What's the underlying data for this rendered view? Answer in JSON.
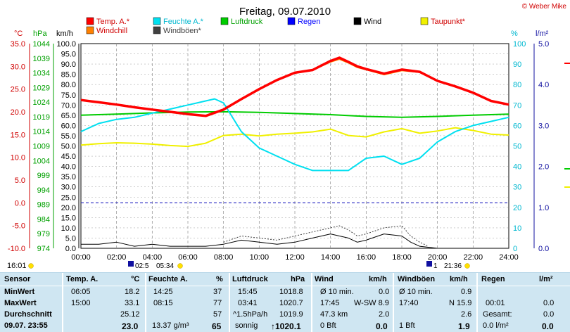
{
  "header": {
    "title": "Freitag, 09.07.2010",
    "copyright": "© Weber Mike"
  },
  "legend": [
    {
      "label": "Temp. A.*",
      "color": "#ff0000",
      "row": 0,
      "col": 0
    },
    {
      "label": "Feuchte A.*",
      "color": "#00e0f0",
      "row": 0,
      "col": 1
    },
    {
      "label": "Luftdruck",
      "color": "#00cc00",
      "row": 0,
      "col": 2
    },
    {
      "label": "Regen",
      "color": "#0000ff",
      "row": 0,
      "col": 3
    },
    {
      "label": "Wind",
      "color": "#000000",
      "row": 0,
      "col": 4
    },
    {
      "label": "Taupunkt*",
      "color": "#f0f000",
      "row": 0,
      "col": 5
    },
    {
      "label": "Windchill",
      "color": "#ff8000",
      "row": 1,
      "col": 0
    },
    {
      "label": "Windböen*",
      "color": "#404040",
      "row": 1,
      "col": 1
    }
  ],
  "axis_units": {
    "temp": "°C",
    "pressure": "hPa",
    "wind": "km/h",
    "humidity": "%",
    "rain": "l/m²"
  },
  "markers": {
    "left_time": "16:01",
    "cursor1": "02:5",
    "cursor2": "05:34",
    "right_marker1": "1",
    "right_marker2": "21:36"
  },
  "chart_data": {
    "type": "line",
    "x_ticks": [
      "00:00",
      "02:00",
      "04:00",
      "06:00",
      "08:00",
      "10:00",
      "12:00",
      "14:00",
      "16:00",
      "18:00",
      "20:00",
      "22:00",
      "24:00"
    ],
    "xlim": [
      "00:00",
      "24:00"
    ],
    "axes": {
      "temp": {
        "ticks": [
          "35.0",
          "30.0",
          "25.0",
          "20.0",
          "15.0",
          "10.0",
          "5.0",
          "0.0",
          "-5.0",
          "-10.0"
        ],
        "ylim": [
          -10,
          35
        ]
      },
      "pressure": {
        "ticks": [
          "1044",
          "1039",
          "1034",
          "1029",
          "1024",
          "1019",
          "1014",
          "1009",
          "1004",
          "999",
          "994",
          "989",
          "984",
          "979",
          "974"
        ],
        "ylim": [
          974,
          1044
        ]
      },
      "wind": {
        "ticks": [
          "100.0",
          "95.0",
          "90.0",
          "85.0",
          "80.0",
          "75.0",
          "70.0",
          "65.0",
          "60.0",
          "55.0",
          "50.0",
          "45.0",
          "40.0",
          "35.0",
          "30.0",
          "25.0",
          "20.0",
          "15.0",
          "10.0",
          "5.0",
          "0.0"
        ],
        "ylim": [
          0,
          100
        ]
      },
      "humidity": {
        "ticks": [
          "100",
          "90",
          "80",
          "70",
          "60",
          "50",
          "40",
          "30",
          "20",
          "10",
          "0"
        ],
        "ylim": [
          0,
          100
        ]
      },
      "rain": {
        "ticks": [
          "5.0",
          "4.0",
          "3.0",
          "2.0",
          "1.0",
          "0.0"
        ],
        "ylim": [
          0,
          5
        ]
      }
    },
    "series": [
      {
        "name": "Temp. A.*",
        "axis": "temp",
        "color": "#ff0000",
        "x": [
          0,
          1,
          2,
          3,
          4,
          5,
          6,
          7,
          8,
          9,
          10,
          11,
          12,
          13,
          14,
          14.5,
          15,
          15.5,
          16,
          17,
          18,
          19,
          20,
          21,
          22,
          23,
          24
        ],
        "y": [
          22.6,
          22.1,
          21.6,
          21.0,
          20.5,
          20.0,
          19.5,
          19.1,
          20.5,
          22.8,
          25.0,
          27.0,
          28.6,
          29.2,
          31.2,
          31.9,
          31.0,
          30.0,
          29.4,
          28.4,
          29.3,
          28.8,
          26.8,
          25.6,
          24.2,
          22.4,
          21.6
        ]
      },
      {
        "name": "Windchill",
        "axis": "temp",
        "color": "#ff8000",
        "x": [
          0,
          1,
          2,
          3,
          4,
          5,
          6,
          7,
          8,
          9,
          10,
          11,
          12,
          13,
          14,
          14.5,
          15,
          15.5,
          16,
          17,
          18,
          19,
          20,
          21,
          22,
          23,
          24
        ],
        "y": [
          22.6,
          22.1,
          21.6,
          21.0,
          20.5,
          20.0,
          19.5,
          19.1,
          20.5,
          22.8,
          25.0,
          27.0,
          28.6,
          29.2,
          31.0,
          31.6,
          30.8,
          29.8,
          29.3,
          28.2,
          29.1,
          28.7,
          26.8,
          25.6,
          24.2,
          22.4,
          21.6
        ]
      },
      {
        "name": "Feuchte A.*",
        "axis": "humidity",
        "color": "#00e0f0",
        "x": [
          0,
          1,
          2,
          3,
          4,
          5,
          6,
          7,
          7.5,
          8,
          9,
          10,
          11,
          12,
          13,
          14,
          15,
          15.5,
          16,
          17,
          18,
          19,
          20,
          21,
          22,
          23,
          24
        ],
        "y": [
          57,
          61,
          63,
          64,
          66,
          68,
          70,
          72,
          73,
          71,
          57,
          49,
          45,
          41,
          38,
          38,
          38,
          41,
          44,
          45,
          41,
          44,
          52,
          57,
          60,
          62,
          64
        ]
      },
      {
        "name": "Luftdruck",
        "axis": "pressure",
        "color": "#00cc00",
        "x": [
          0,
          2,
          4,
          6,
          8,
          10,
          12,
          14,
          16,
          18,
          20,
          22,
          24
        ],
        "y": [
          1019.5,
          1019.9,
          1020.3,
          1020.6,
          1020.7,
          1020.5,
          1020.1,
          1019.7,
          1019.1,
          1018.8,
          1019.1,
          1019.5,
          1019.9
        ]
      },
      {
        "name": "Taupunkt*",
        "axis": "temp",
        "color": "#f0f000",
        "x": [
          0,
          1,
          2,
          3,
          4,
          5,
          6,
          7,
          8,
          9,
          10,
          11,
          12,
          13,
          14,
          15,
          16,
          17,
          18,
          19,
          20,
          21,
          22,
          23,
          24
        ],
        "y": [
          12.7,
          13.0,
          13.2,
          13.1,
          12.9,
          12.6,
          12.4,
          13.1,
          14.8,
          15.1,
          14.7,
          15.1,
          15.3,
          15.6,
          16.2,
          14.8,
          14.5,
          15.6,
          16.3,
          15.3,
          15.8,
          16.5,
          15.9,
          15.1,
          14.9
        ]
      },
      {
        "name": "Wind",
        "axis": "wind",
        "color": "#000000",
        "x": [
          0,
          1,
          2,
          3,
          4,
          5,
          6,
          7,
          8,
          9,
          10,
          11,
          12,
          13,
          14,
          14.5,
          15,
          15.5,
          16,
          17,
          18,
          18.5,
          19,
          20
        ],
        "y": [
          2,
          2,
          3,
          1,
          2,
          1,
          1,
          1,
          2,
          4,
          3,
          2,
          3,
          5,
          7,
          6,
          5,
          3,
          4,
          7,
          6,
          3,
          1,
          0
        ]
      },
      {
        "name": "Windböen*",
        "axis": "wind",
        "color": "#404040",
        "x": [
          8,
          9,
          10,
          11,
          12,
          13,
          14,
          14.5,
          15,
          15.5,
          16,
          17,
          18,
          18.5,
          19,
          19.5
        ],
        "y": [
          3,
          6,
          5,
          4,
          6,
          8,
          10,
          11,
          9,
          6,
          7,
          10,
          11,
          6,
          3,
          1
        ]
      },
      {
        "name": "Regen",
        "axis": "rain",
        "color": "#0000ff",
        "x": [
          0,
          24
        ],
        "y": [
          1.1,
          1.1
        ]
      }
    ]
  },
  "table": {
    "headers": [
      {
        "label": "Sensor",
        "unit": ""
      },
      {
        "label": "Temp. A.",
        "unit": "°C"
      },
      {
        "label": "Feuchte A.",
        "unit": "%"
      },
      {
        "label": "Luftdruck",
        "unit": "hPa"
      },
      {
        "label": "Wind",
        "unit": "km/h"
      },
      {
        "label": "Windböen",
        "unit": "km/h"
      },
      {
        "label": "Regen",
        "unit": "l/m²"
      }
    ],
    "rows": [
      {
        "label": "MinWert",
        "temp_time": "06:05",
        "temp_val": "18.2",
        "hum_time": "14:25",
        "hum_val": "37",
        "press_time": "15:45",
        "press_val": "1018.8",
        "wind_time": "Ø 10 min.",
        "wind_val": "0.0",
        "gust_time": "Ø 10 min.",
        "gust_val": "0.9",
        "rain_time": "",
        "rain_val": ""
      },
      {
        "label": "MaxWert",
        "temp_time": "15:00",
        "temp_val": "33.1",
        "hum_time": "08:15",
        "hum_val": "77",
        "press_time": "03:41",
        "press_val": "1020.7",
        "wind_time": "17:45",
        "wind_mid": "W-SW 8.9",
        "wind_val": "",
        "gust_time": "17:40",
        "gust_val": "N 15.9",
        "rain_time": "00:01",
        "rain_val": "0.0"
      },
      {
        "label": "Durchschnitt",
        "temp_time": "",
        "temp_val": "25.12",
        "hum_time": "",
        "hum_val": "57",
        "press_time": "^1.5hPa/h",
        "press_val": "1019.9",
        "wind_time": "47.3 km",
        "wind_val": "2.0",
        "gust_time": "",
        "gust_val": "2.6",
        "rain_time": "Gesamt:",
        "rain_val": "0.0"
      },
      {
        "label": "09.07. 23:55",
        "temp_time": "",
        "temp_val": "23.0",
        "hum_time": "13.37 g/m³",
        "hum_val": "65",
        "press_time": "sonnig",
        "press_val": "↑1020.1",
        "wind_time": "0 Bft",
        "wind_val": "0.0",
        "gust_time": "1 Bft",
        "gust_val": "1.9",
        "rain_time": "0.0 l/m²",
        "rain_val": "0.0"
      }
    ]
  }
}
